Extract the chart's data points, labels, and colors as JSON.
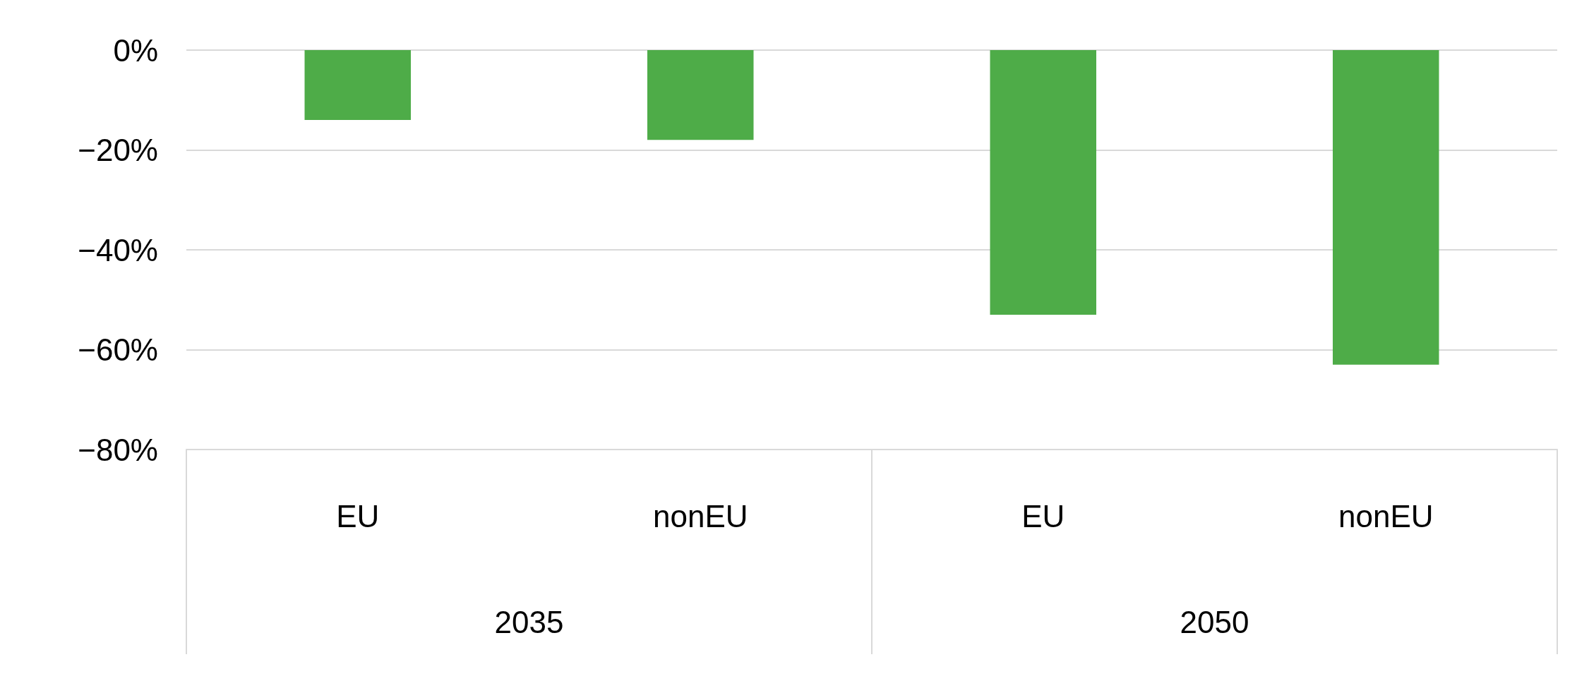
{
  "chart_data": {
    "type": "bar",
    "categories": [
      "EU",
      "nonEU",
      "EU",
      "nonEU"
    ],
    "values": [
      -14,
      -18,
      -53,
      -63
    ],
    "color": "#4eac48",
    "ylim": [
      -80,
      0
    ],
    "yticks": [
      {
        "value": -80,
        "label": "−80%"
      },
      {
        "value": -60,
        "label": "−60%"
      },
      {
        "value": -40,
        "label": "−40%"
      },
      {
        "value": -20,
        "label": "−20%"
      },
      {
        "value": 0,
        "label": "0%"
      }
    ],
    "grid": "y",
    "annotations": [
      "2035",
      "2050"
    ]
  }
}
